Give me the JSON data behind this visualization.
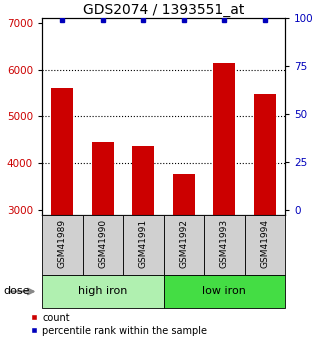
{
  "title": "GDS2074 / 1393551_at",
  "samples": [
    "GSM41989",
    "GSM41990",
    "GSM41991",
    "GSM41992",
    "GSM41993",
    "GSM41994"
  ],
  "counts": [
    5600,
    4450,
    4380,
    3780,
    6150,
    5480
  ],
  "percentile_ranks": [
    99,
    99,
    99,
    99,
    99,
    99
  ],
  "groups": [
    {
      "label": "high iron",
      "samples": [
        0,
        1,
        2
      ],
      "color": "#b0f0b0"
    },
    {
      "label": "low iron",
      "samples": [
        3,
        4,
        5
      ],
      "color": "#44dd44"
    }
  ],
  "ylim_left": [
    2900,
    7100
  ],
  "ylim_right": [
    -2.38,
    100
  ],
  "yticks_left": [
    3000,
    4000,
    5000,
    6000,
    7000
  ],
  "yticks_right": [
    0,
    25,
    50,
    75,
    100
  ],
  "bar_color": "#cc0000",
  "dot_color": "#0000bb",
  "bar_width": 0.55,
  "title_fontsize": 10,
  "tick_fontsize": 7.5,
  "sample_label_fontsize": 6.5,
  "group_label_fontsize": 8,
  "legend_fontsize": 7,
  "dose_fontsize": 8,
  "sample_box_color": "#d0d0d0",
  "grid_linestyle": ":",
  "grid_linewidth": 0.8,
  "grid_color": "black",
  "gridlines_at": [
    4000,
    5000,
    6000
  ]
}
